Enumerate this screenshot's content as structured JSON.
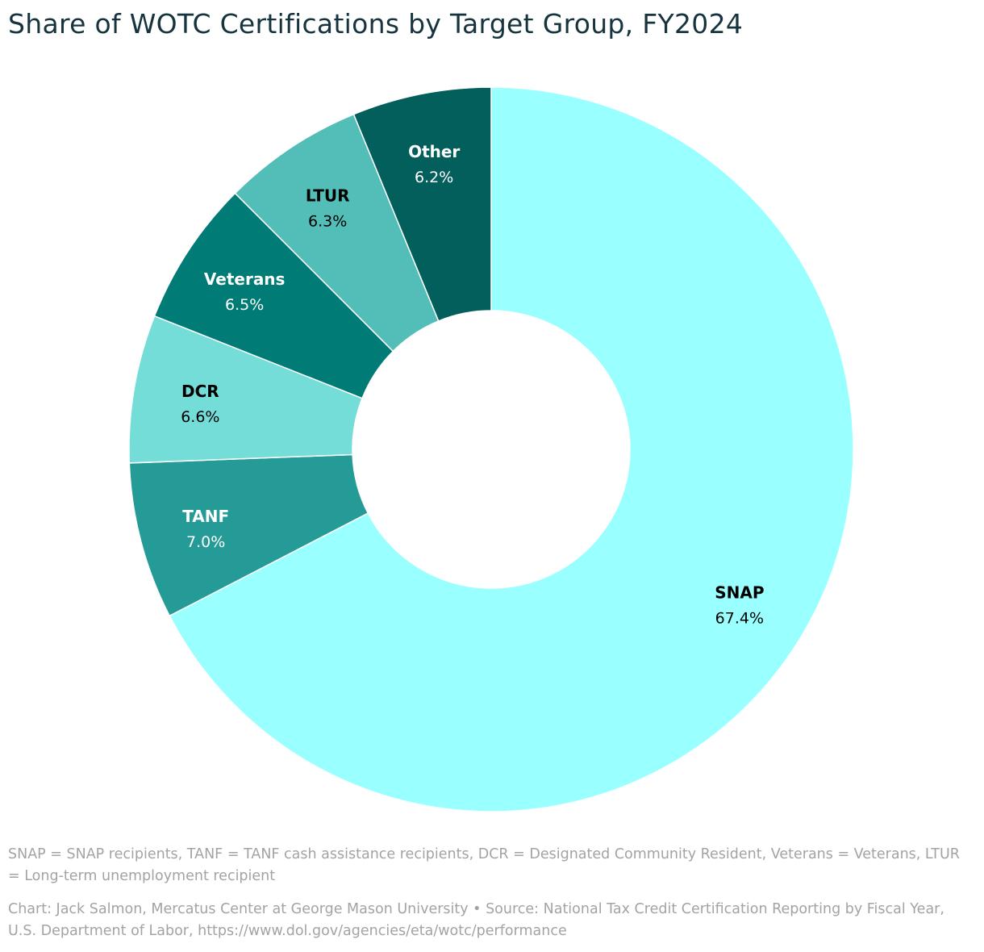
{
  "chart_data": {
    "type": "pie",
    "title": "Share of WOTC Certifications by Target Group, FY2024",
    "donut": true,
    "slices": [
      {
        "label": "SNAP",
        "value": 67.4,
        "value_label": "67.4%",
        "color": "#99ffff",
        "text_color": "#000000"
      },
      {
        "label": "TANF",
        "value": 7.0,
        "value_label": "7.0%",
        "color": "#259b97",
        "text_color": "#ffffff"
      },
      {
        "label": "DCR",
        "value": 6.6,
        "value_label": "6.6%",
        "color": "#74ddd8",
        "text_color": "#000000"
      },
      {
        "label": "Veterans",
        "value": 6.5,
        "value_label": "6.5%",
        "color": "#007b75",
        "text_color": "#ffffff"
      },
      {
        "label": "LTUR",
        "value": 6.3,
        "value_label": "6.3%",
        "color": "#52beb7",
        "text_color": "#000000"
      },
      {
        "label": "Other",
        "value": 6.2,
        "value_label": "6.2%",
        "color": "#025f5c",
        "text_color": "#ffffff"
      }
    ]
  },
  "notes": "SNAP = SNAP recipients, TANF = TANF cash assistance recipients, DCR = Designated Community Resident, Veterans = Veterans, LTUR = Long-term unemployment recipient",
  "credit": "Chart: Jack Salmon, Mercatus Center at George Mason University • Source: National Tax Credit Certification Reporting by Fiscal Year, U.S. Department of Labor, https://www.dol.gov/agencies/eta/wotc/performance"
}
